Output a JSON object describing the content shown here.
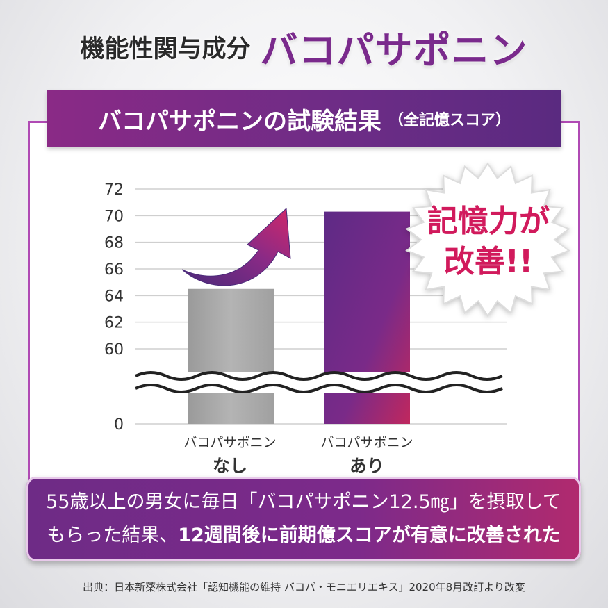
{
  "header": {
    "label": "機能性関与成分",
    "product": "バコパサポニン"
  },
  "banner": {
    "title": "バコパサポニンの試験結果",
    "subtitle": "（全記憶スコア）"
  },
  "burst": {
    "line1": "記憶力が",
    "line2": "改善!!"
  },
  "chart_data": {
    "type": "bar",
    "categories": [
      {
        "line1": "バコパサポニン",
        "line2": "なし"
      },
      {
        "line1": "バコパサポニン",
        "line2": "あり"
      }
    ],
    "values": [
      64.5,
      70.3
    ],
    "yticks": [
      60,
      62,
      64,
      66,
      68,
      70,
      72
    ],
    "ybreak_label": "0",
    "ylim": [
      60,
      72
    ],
    "axis_break": true,
    "grid": true,
    "colors": [
      "#a6a6a6",
      "#6a2a86"
    ],
    "accent": "#d11a5c"
  },
  "note": {
    "line1": "55歳以上の男女に毎日「バコパサポニン12.5㎎」を摂取して",
    "line2_prefix": "もらった結果、",
    "line2_bold": "12週間後に前期億スコアが有意に改善された"
  },
  "source": "出典：日本新薬株式会社「認知機能の維持 バコパ・モニエリエキス」2020年8月改訂より改変"
}
